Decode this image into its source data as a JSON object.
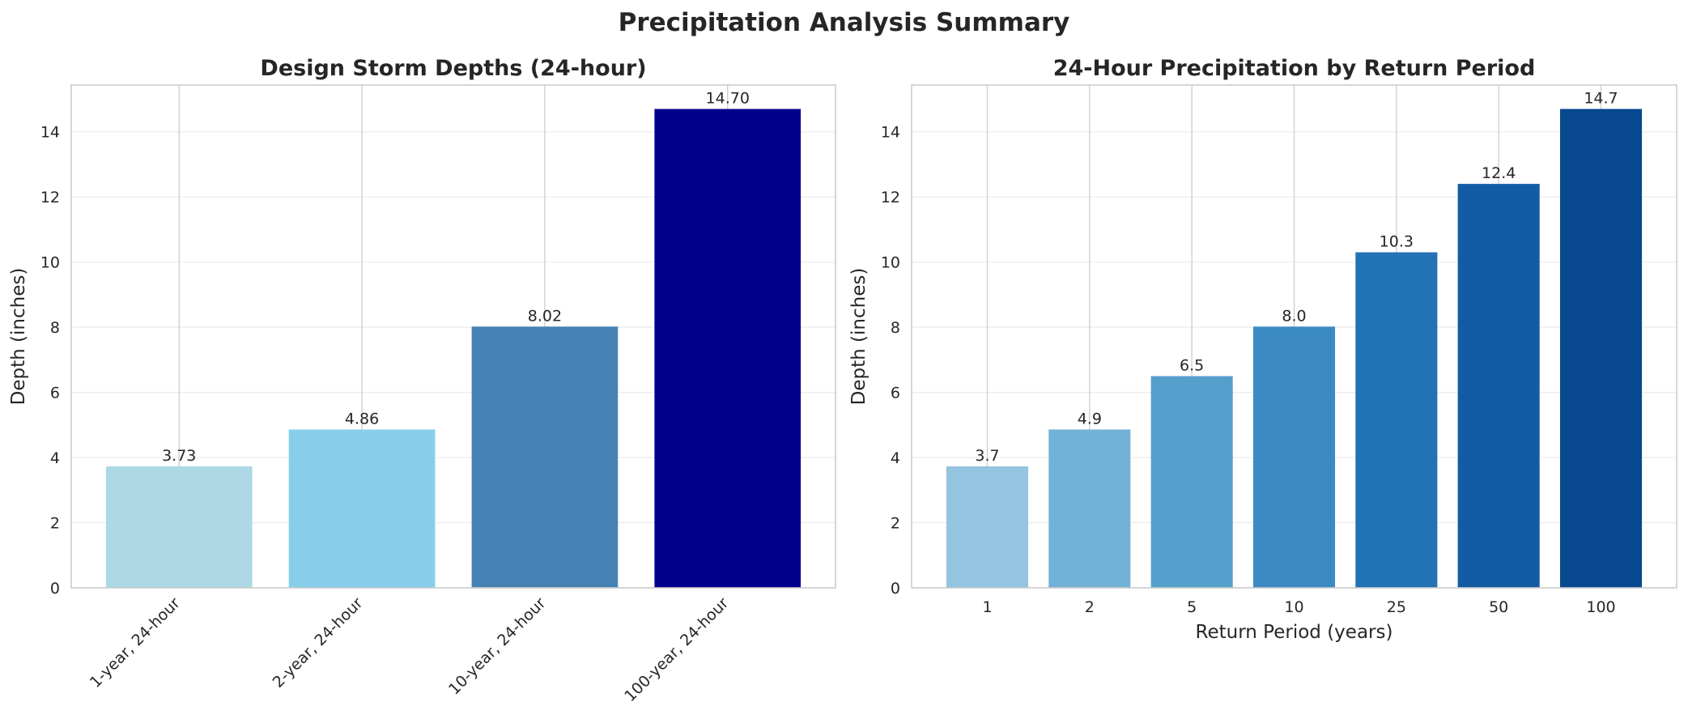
{
  "figure": {
    "title": "Precipitation Analysis Summary"
  },
  "chart_data": [
    {
      "type": "bar",
      "title": "Design Storm Depths (24-hour)",
      "xlabel": "",
      "ylabel": "Depth (inches)",
      "categories": [
        "1-year, 24-hour",
        "2-year, 24-hour",
        "10-year, 24-hour",
        "100-year, 24-hour"
      ],
      "values": [
        3.73,
        4.86,
        8.02,
        14.7
      ],
      "data_labels": [
        "3.73",
        "4.86",
        "8.02",
        "14.70"
      ],
      "colors": [
        "#add8e6",
        "#87ceeb",
        "#4682b4",
        "#00008b"
      ],
      "ylim": [
        0,
        15.435
      ],
      "yticks": [
        0,
        2,
        4,
        6,
        8,
        10,
        12,
        14
      ],
      "grid": true
    },
    {
      "type": "bar",
      "title": "24-Hour Precipitation by Return Period",
      "xlabel": "Return Period (years)",
      "ylabel": "Depth (inches)",
      "categories": [
        "1",
        "2",
        "5",
        "10",
        "25",
        "50",
        "100"
      ],
      "values": [
        3.73,
        4.86,
        6.5,
        8.02,
        10.3,
        12.4,
        14.7
      ],
      "data_labels": [
        "3.7",
        "4.9",
        "6.5",
        "8.0",
        "10.3",
        "12.4",
        "14.7"
      ],
      "colors": [
        "#94c4df",
        "#72b2d8",
        "#559fcd",
        "#3b8bc2",
        "#2272b6",
        "#125ca4",
        "#08488e"
      ],
      "ylim": [
        0,
        15.435
      ],
      "yticks": [
        0,
        2,
        4,
        6,
        8,
        10,
        12,
        14
      ],
      "grid": true
    }
  ]
}
